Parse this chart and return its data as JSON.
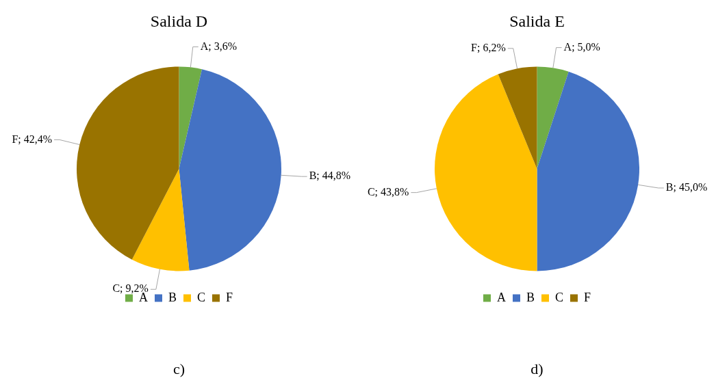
{
  "chart_data": [
    {
      "type": "pie",
      "title": "Salida D",
      "categories": [
        "A",
        "B",
        "C",
        "F"
      ],
      "values": [
        3.6,
        44.8,
        9.2,
        42.4
      ],
      "colors": [
        "#70ad47",
        "#4472c4",
        "#ffc000",
        "#997300"
      ],
      "value_labels": [
        "A; 3,6%",
        "B; 44,8%",
        "C; 9,2%",
        "F; 42,4%"
      ],
      "legend": "bottom",
      "annotations": [
        "c)"
      ]
    },
    {
      "type": "pie",
      "title": "Salida E",
      "categories": [
        "A",
        "B",
        "C",
        "F"
      ],
      "values": [
        5.0,
        45.0,
        43.8,
        6.2
      ],
      "colors": [
        "#70ad47",
        "#4472c4",
        "#ffc000",
        "#997300"
      ],
      "value_labels": [
        "A; 5,0%",
        "B; 45,0%",
        "C; 43,8%",
        "F; 6,2%"
      ],
      "legend": "bottom",
      "annotations": [
        "d)"
      ]
    }
  ]
}
